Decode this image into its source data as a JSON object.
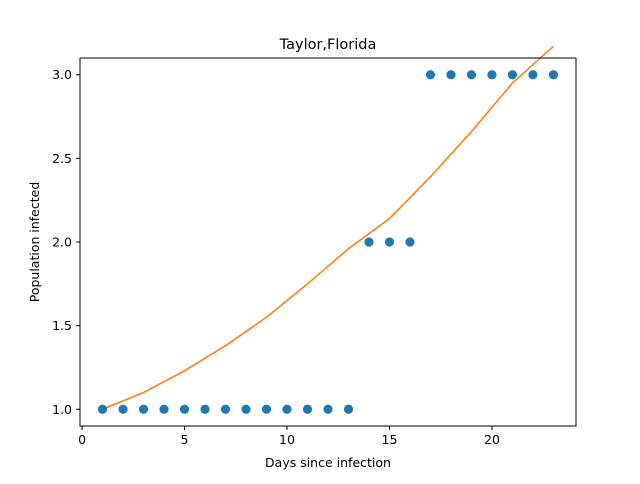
{
  "chart_data": {
    "type": "scatter",
    "title": "Taylor,Florida",
    "xlabel": "Days since infection",
    "ylabel": "Population infected",
    "xlim": [
      -0.1,
      24.1
    ],
    "ylim": [
      0.9,
      3.1
    ],
    "xticks": [
      0,
      5,
      10,
      15,
      20
    ],
    "xtick_labels": [
      "0",
      "5",
      "10",
      "15",
      "20"
    ],
    "yticks": [
      1.0,
      1.5,
      2.0,
      2.5,
      3.0
    ],
    "ytick_labels": [
      "1.0",
      "1.5",
      "2.0",
      "2.5",
      "3.0"
    ],
    "grid": false,
    "series": [
      {
        "kind": "scatter",
        "color": "#1f77b4",
        "x": [
          1,
          2,
          3,
          4,
          5,
          6,
          7,
          8,
          9,
          10,
          11,
          12,
          13,
          14,
          15,
          16,
          17,
          18,
          19,
          20,
          21,
          22,
          23
        ],
        "y": [
          1,
          1,
          1,
          1,
          1,
          1,
          1,
          1,
          1,
          1,
          1,
          1,
          1,
          2,
          2,
          2,
          3,
          3,
          3,
          3,
          3,
          3,
          3
        ]
      },
      {
        "kind": "line",
        "color": "#ff7f0e",
        "x": [
          1,
          3,
          5,
          7,
          9,
          11,
          13,
          15,
          17,
          19,
          21,
          23
        ],
        "y": [
          1.0,
          1.1,
          1.23,
          1.38,
          1.55,
          1.75,
          1.96,
          2.14,
          2.39,
          2.66,
          2.95,
          3.17
        ]
      }
    ]
  }
}
